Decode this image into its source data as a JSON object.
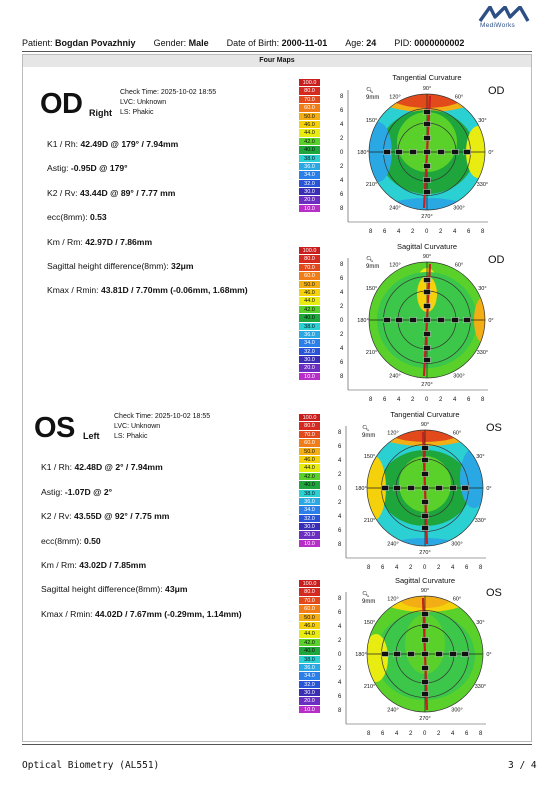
{
  "brand": {
    "name": "MediWorks"
  },
  "patient": {
    "patient_label": "Patient:",
    "patient_name": "Bogdan Povazhniy",
    "gender_label": "Gender:",
    "gender": "Male",
    "dob_label": "Date of Birth:",
    "dob": "2000-11-01",
    "age_label": "Age:",
    "age": "24",
    "pid_label": "PID:",
    "pid": "0000000002"
  },
  "section_title": "Four Maps",
  "scale_values": [
    "100.0",
    "80.0",
    "70.0",
    "60.0",
    "50.0",
    "46.0",
    "44.0",
    "42.0",
    "40.0",
    "38.0",
    "36.0",
    "34.0",
    "32.0",
    "30.0",
    "20.0",
    "10.0"
  ],
  "scale_colors": [
    "#c81e1e",
    "#d42a1f",
    "#e24a1c",
    "#f07d17",
    "#f2ae14",
    "#f5d10c",
    "#e8ec10",
    "#59d12a",
    "#1ea63c",
    "#2ad0d2",
    "#2aa8e3",
    "#2a7fe8",
    "#2a54d8",
    "#3a2eb4",
    "#6a2ec0",
    "#b72ec9"
  ],
  "od": {
    "label": "OD",
    "sub": "Right",
    "check_time": "Check Time: 2025-10-02 18:55",
    "lvc": "LVC: Unknown",
    "ls": "LS: Phakic",
    "k1_label": "K1 / Rh:",
    "k1": "42.49D @ 179° / 7.94mm",
    "astig_label": "Astig:",
    "astig": "-0.95D @ 179°",
    "k2_label": "K2 / Rv:",
    "k2": "43.44D @ 89° / 7.77 mm",
    "ecc_label": "ecc(8mm):",
    "ecc": "0.53",
    "km_label": "Km / Rm:",
    "km": "42.97D / 7.86mm",
    "sag_label": "Sagittal height difference(8mm):",
    "sag": "32μm",
    "kmax_label": "Kmax / Rmin:",
    "kmax": "43.81D / 7.70mm (-0.06mm, 1.68mm)"
  },
  "os": {
    "label": "OS",
    "sub": "Left",
    "check_time": "Check Time: 2025-10-02 18:55",
    "lvc": "LVC: Unknown",
    "ls": "LS: Phakic",
    "k1_label": "K1 / Rh:",
    "k1": "42.48D @ 2° / 7.94mm",
    "astig_label": "Astig:",
    "astig": "-1.07D @ 2°",
    "k2_label": "K2 / Rv:",
    "k2": "43.55D @ 92° / 7.75 mm",
    "ecc_label": "ecc(8mm):",
    "ecc": "0.50",
    "km_label": "Km / Rm:",
    "km": "43.02D / 7.85mm",
    "sag_label": "Sagittal height difference(8mm):",
    "sag": "43μm",
    "kmax_label": "Kmax / Rmin:",
    "kmax": "44.02D / 7.67mm (-0.29mm, 1.14mm)"
  },
  "maps": {
    "tangential": "Tangential Curvature",
    "sagittal": "Sagittal Curvature",
    "zoom": "9mm",
    "y_ticks": [
      "8",
      "6",
      "4",
      "2",
      "0",
      "2",
      "4",
      "6",
      "8"
    ],
    "x_ticks": [
      "8",
      "6",
      "4",
      "2",
      "0",
      "2",
      "4",
      "6",
      "8"
    ],
    "angle_labels": [
      "90°",
      "120°",
      "150°",
      "180°",
      "210°",
      "240°",
      "270°",
      "300°",
      "330°",
      "0°",
      "30°",
      "60°"
    ]
  },
  "footer": {
    "left": "Optical Biometry (AL551)",
    "right": "3 / 4"
  }
}
